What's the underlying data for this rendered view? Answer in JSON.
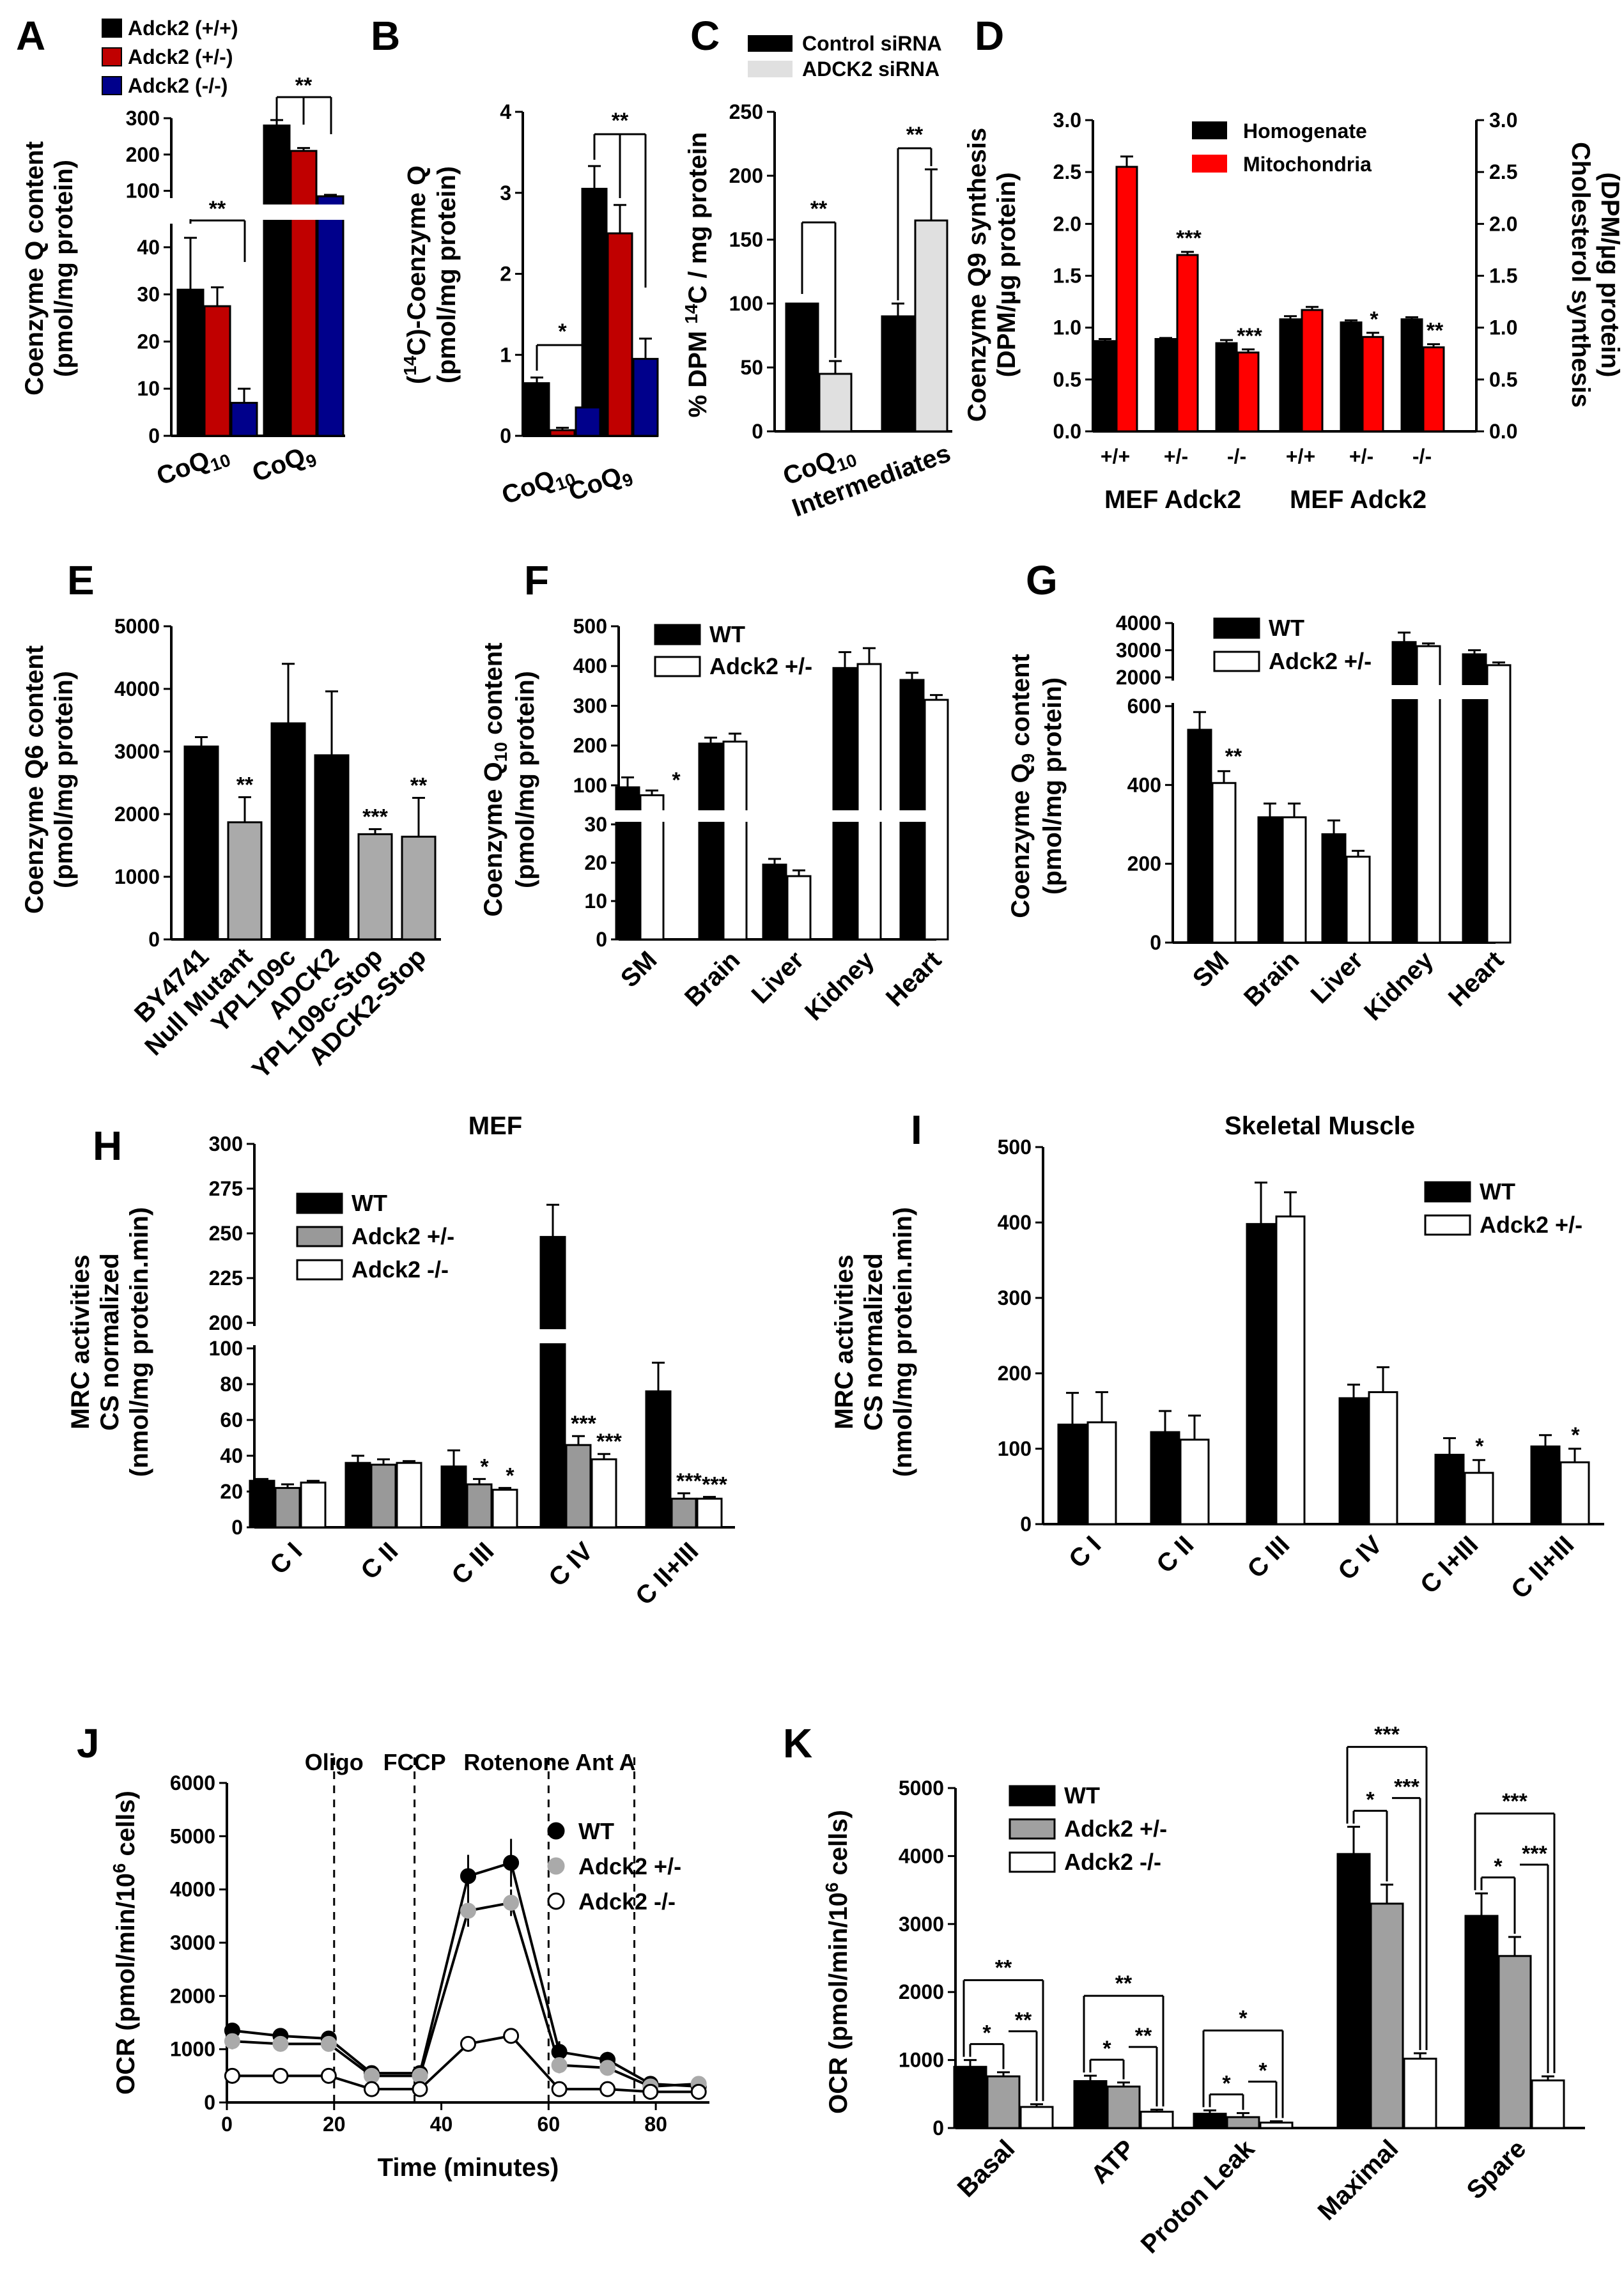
{
  "chart_data": [
    {
      "id": "A",
      "type": "bar",
      "panel_label": "A",
      "ylabel": "Coenzyme Q content\n(pmol/mg protein)",
      "categories": [
        "CoQ10",
        "CoQ9"
      ],
      "tick_label_main": [
        "CoQ",
        "CoQ"
      ],
      "tick_label_sub": [
        "10",
        "9"
      ],
      "series": [
        {
          "name": "Adck2 (+/+)",
          "color": "#000000",
          "values": [
            31,
            280
          ],
          "errors": [
            11,
            15
          ]
        },
        {
          "name": "Adck2 (+/-)",
          "color": "#c00000",
          "values": [
            27.5,
            210
          ],
          "errors": [
            4,
            8
          ]
        },
        {
          "name": "Adck2 (-/-)",
          "color": "#00008b",
          "values": [
            7,
            85
          ],
          "errors": [
            3,
            4
          ]
        }
      ],
      "ylim_low": [
        0,
        45
      ],
      "ylim_high": [
        80,
        300
      ],
      "yticks_low": [
        "0",
        "10",
        "20",
        "30",
        "40"
      ],
      "yticks_high": [
        "100",
        "200",
        "300"
      ],
      "sig": [
        "**",
        "**"
      ]
    },
    {
      "id": "B",
      "type": "bar",
      "panel_label": "B",
      "ylabel": "(14C)-Coenzyme Q\n(pmol/mg protein)",
      "ylabel_sup": "14",
      "categories": [
        "CoQ10",
        "CoQ9"
      ],
      "tick_label_main": [
        "CoQ",
        "CoQ"
      ],
      "tick_label_sub": [
        "10",
        "9"
      ],
      "series": [
        {
          "name": "Adck2 (+/+)",
          "values": [
            0.65,
            3.05
          ],
          "errors": [
            0.07,
            0.28
          ]
        },
        {
          "name": "Adck2 (+/-)",
          "values": [
            0.07,
            2.5
          ],
          "errors": [
            0.03,
            0.35
          ]
        },
        {
          "name": "Adck2 (-/-)",
          "values": [
            0.35,
            0.95
          ],
          "errors": [
            0.03,
            0.25
          ]
        }
      ],
      "ylim": [
        0,
        4
      ],
      "yticks": [
        "0",
        "1",
        "2",
        "3",
        "4"
      ],
      "sig": [
        "*",
        "**"
      ]
    },
    {
      "id": "C",
      "type": "bar",
      "panel_label": "C",
      "ylabel": "% DPM 14C / mg protein",
      "categories": [
        "CoQ10",
        "Intermediates"
      ],
      "tick_label_main": [
        "CoQ",
        "Intermediates"
      ],
      "tick_label_sub": [
        "10",
        ""
      ],
      "series": [
        {
          "name": "Control siRNA",
          "color": "#000000",
          "values": [
            100,
            90
          ],
          "errors": [
            0,
            10
          ]
        },
        {
          "name": "ADCK2 siRNA",
          "color": "#e0e0e0",
          "values": [
            45,
            165
          ],
          "errors": [
            10,
            40
          ]
        }
      ],
      "ylim": [
        0,
        250
      ],
      "yticks": [
        "0",
        "50",
        "100",
        "150",
        "200",
        "250"
      ],
      "sig": [
        "**",
        "**"
      ]
    },
    {
      "id": "D",
      "type": "bar",
      "panel_label": "D",
      "ylabel": "Coenzyme Q9 synthesis\n(DPM/µg protein)",
      "ylabel_right": "Cholesterol synthesis\n(DPM/µg protein)",
      "categories": [
        "+/+",
        "+/-",
        "-/-",
        "+/+",
        "+/-",
        "-/-"
      ],
      "group_labels": [
        "MEF Adck2",
        "MEF Adck2"
      ],
      "series": [
        {
          "name": "Homogenate",
          "color": "#000000",
          "values": [
            0.87,
            0.89,
            0.85,
            1.08,
            1.05,
            1.08
          ],
          "errors": [
            0.02,
            0.01,
            0.03,
            0.03,
            0.02,
            0.02
          ]
        },
        {
          "name": "Mitochondria",
          "color": "#ff0000",
          "values": [
            2.55,
            1.7,
            0.76,
            1.17,
            0.91,
            0.81
          ],
          "errors": [
            0.1,
            0.03,
            0.03,
            0.03,
            0.04,
            0.03
          ]
        }
      ],
      "ylim": [
        0,
        3
      ],
      "yticks": [
        "0.0",
        "0.5",
        "1.0",
        "1.5",
        "2.0",
        "2.5",
        "3.0"
      ],
      "sig": [
        "",
        "***",
        "***",
        "",
        "*",
        "**"
      ]
    },
    {
      "id": "E",
      "type": "bar",
      "panel_label": "E",
      "ylabel": "Coenzyme Q6 content\n(pmol/mg protein)",
      "categories": [
        "BY4741",
        "Null Mutant",
        "YPL109c",
        "ADCK2",
        "YPL109c-Stop",
        "ADCK2-Stop"
      ],
      "values": [
        3080,
        1870,
        3450,
        2940,
        1680,
        1640
      ],
      "errors": [
        150,
        400,
        950,
        1020,
        80,
        620
      ],
      "colors": [
        "#000000",
        "#aaaaaa",
        "#000000",
        "#000000",
        "#aaaaaa",
        "#aaaaaa"
      ],
      "ylim": [
        0,
        5000
      ],
      "yticks": [
        "0",
        "1000",
        "2000",
        "3000",
        "4000",
        "5000"
      ],
      "sig": [
        "",
        "**",
        "",
        "",
        "***",
        "**"
      ]
    },
    {
      "id": "F",
      "type": "bar",
      "panel_label": "F",
      "ylabel": "Coenzyme Q10 content\n(pmol/mg protein)",
      "categories": [
        "SM",
        "Brain",
        "Liver",
        "Kidney",
        "Heart"
      ],
      "series": [
        {
          "name": "WT",
          "values": [
            95,
            205,
            19.5,
            395,
            365
          ],
          "errors": [
            25,
            15,
            1.5,
            40,
            18
          ]
        },
        {
          "name": "Adck2 +/-",
          "values": [
            75,
            210,
            16.5,
            405,
            315
          ],
          "errors": [
            12,
            20,
            1.5,
            40,
            12
          ]
        }
      ],
      "yticks_low": [
        "0",
        "10",
        "20",
        "30"
      ],
      "yticks_high": [
        "100",
        "200",
        "300",
        "400",
        "500"
      ],
      "sig": [
        "*",
        "",
        "",
        "",
        ""
      ]
    },
    {
      "id": "G",
      "type": "bar",
      "panel_label": "G",
      "ylabel": "Coenzyme Q9 content\n(pmol/mg protein)",
      "categories": [
        "SM",
        "Brain",
        "Liver",
        "Kidney",
        "Heart"
      ],
      "series": [
        {
          "name": "WT",
          "values": [
            540,
            318,
            275,
            3300,
            2850
          ],
          "errors": [
            45,
            35,
            35,
            350,
            150
          ]
        },
        {
          "name": "Adck2 +/-",
          "values": [
            405,
            318,
            218,
            3150,
            2450
          ],
          "errors": [
            30,
            35,
            15,
            100,
            100
          ]
        }
      ],
      "yticks_low": [
        "0",
        "200",
        "400",
        "600"
      ],
      "yticks_high": [
        "2000",
        "3000",
        "4000"
      ],
      "sig": [
        "**",
        "",
        "",
        "",
        ""
      ]
    },
    {
      "id": "H",
      "type": "bar",
      "panel_label": "H",
      "title": "MEF",
      "ylabel": "MRC activities\nCS normalized\n(nmol/mg protein.min)",
      "categories": [
        "C I",
        "C II",
        "C III",
        "C IV",
        "C II+III"
      ],
      "series": [
        {
          "name": "WT",
          "color": "#000000",
          "values": [
            26,
            36,
            34,
            248,
            76
          ],
          "errors": [
            1,
            4,
            9,
            18,
            16
          ]
        },
        {
          "name": "Adck2 +/-",
          "color": "#999999",
          "values": [
            22,
            35,
            24,
            46,
            16
          ],
          "errors": [
            2,
            3,
            3,
            5,
            3
          ]
        },
        {
          "name": "Adck2 -/-",
          "color": "#ffffff",
          "values": [
            25,
            36,
            21,
            38,
            16
          ],
          "errors": [
            1,
            1,
            1,
            3,
            1
          ]
        }
      ],
      "yticks_low": [
        "0",
        "20",
        "40",
        "60",
        "80",
        "100"
      ],
      "yticks_high": [
        "200",
        "225",
        "250",
        "275",
        "300"
      ],
      "sig": [
        [
          "",
          "",
          ""
        ],
        [
          "",
          "",
          ""
        ],
        [
          "",
          "*",
          "*"
        ],
        [
          "",
          "***",
          "***"
        ],
        [
          "",
          "***",
          "***"
        ]
      ]
    },
    {
      "id": "I",
      "type": "bar",
      "panel_label": "I",
      "title": "Skeletal Muscle",
      "ylabel": "MRC activities\nCS normalized\n(nmol/mg protein.min)",
      "categories": [
        "C I",
        "C II",
        "C III",
        "C IV",
        "C I+III",
        "C II+III"
      ],
      "series": [
        {
          "name": "WT",
          "values": [
            132,
            122,
            398,
            167,
            92,
            103
          ],
          "errors": [
            42,
            28,
            55,
            18,
            22,
            15
          ]
        },
        {
          "name": "Adck2 +/-",
          "values": [
            135,
            112,
            408,
            175,
            68,
            82
          ],
          "errors": [
            40,
            32,
            32,
            33,
            17,
            18
          ]
        }
      ],
      "ylim": [
        0,
        500
      ],
      "yticks": [
        "0",
        "100",
        "200",
        "300",
        "400",
        "500"
      ],
      "sig": [
        "",
        "",
        "",
        "",
        "*",
        "*"
      ]
    },
    {
      "id": "J",
      "type": "line",
      "panel_label": "J",
      "xlabel": "Time (minutes)",
      "ylabel": "OCR (pmol/min/10^6 cells)",
      "ylim": [
        0,
        6000
      ],
      "xlim": [
        0,
        90
      ],
      "yticks": [
        "0",
        "1000",
        "2000",
        "3000",
        "4000",
        "5000",
        "6000"
      ],
      "xticks": [
        "0",
        "20",
        "40",
        "60",
        "80"
      ],
      "annotations": [
        {
          "text": "Oligo",
          "x": 20
        },
        {
          "text": "FCCP",
          "x": 35
        },
        {
          "text": "Rotenone Ant A",
          "x": 60
        }
      ],
      "vlines": [
        20,
        35,
        60,
        76
      ],
      "x": [
        1,
        10,
        19,
        27,
        36,
        45,
        53,
        62,
        71,
        79,
        88
      ],
      "series": [
        {
          "name": "WT",
          "values": [
            1350,
            1250,
            1200,
            550,
            550,
            4250,
            4500,
            950,
            800,
            350,
            300
          ],
          "errors": [
            120,
            80,
            80,
            40,
            40,
            400,
            450,
            200,
            150,
            60,
            50
          ]
        },
        {
          "name": "Adck2 +/-",
          "values": [
            1150,
            1100,
            1100,
            500,
            500,
            3600,
            3750,
            700,
            650,
            300,
            350
          ],
          "errors": [
            150,
            80,
            80,
            40,
            40,
            300,
            250,
            150,
            120,
            50,
            50
          ]
        },
        {
          "name": "Adck2 -/-",
          "values": [
            500,
            500,
            500,
            250,
            250,
            1100,
            1250,
            250,
            250,
            200,
            200
          ],
          "errors": [
            30,
            30,
            30,
            30,
            30,
            50,
            50,
            30,
            30,
            20,
            20
          ]
        }
      ]
    },
    {
      "id": "K",
      "type": "bar",
      "panel_label": "K",
      "ylabel": "OCR (pmol/min/10^6 cells)",
      "categories": [
        "Basal",
        "ATP",
        "Proton Leak",
        "Maximal",
        "Spare"
      ],
      "series": [
        {
          "name": "WT",
          "color": "#000000",
          "values": [
            900,
            690,
            210,
            4030,
            3120
          ],
          "errors": [
            100,
            80,
            50,
            400,
            330
          ]
        },
        {
          "name": "Adck2 +/-",
          "color": "#a0a0a0",
          "values": [
            760,
            610,
            160,
            3300,
            2530
          ],
          "errors": [
            60,
            60,
            60,
            280,
            280
          ]
        },
        {
          "name": "Adck2 -/-",
          "color": "#ffffff",
          "values": [
            310,
            240,
            80,
            1020,
            700
          ],
          "errors": [
            40,
            30,
            20,
            80,
            60
          ]
        }
      ],
      "ylim": [
        0,
        5000
      ],
      "yticks": [
        "0",
        "1000",
        "2000",
        "3000",
        "4000",
        "5000"
      ],
      "sig": [
        [
          "*",
          "**",
          "**"
        ],
        [
          "*",
          "**",
          "**"
        ],
        [
          "*",
          "*",
          "*"
        ],
        [
          "*",
          "***",
          "***"
        ],
        [
          "*",
          "***",
          "***"
        ]
      ]
    }
  ]
}
